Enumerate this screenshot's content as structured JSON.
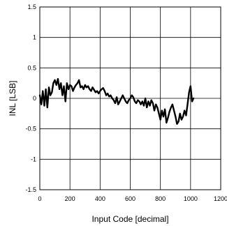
{
  "chart_data": {
    "type": "line",
    "title": "",
    "xlabel": "Input Code [decimal]",
    "ylabel": "INL [LSB]",
    "xlim": [
      0,
      1200
    ],
    "ylim": [
      -1.5,
      1.5
    ],
    "xticks": [
      "0",
      "200",
      "400",
      "600",
      "800",
      "1000",
      "1200"
    ],
    "yticks": [
      "1.5",
      "1",
      "0.5",
      "0",
      "-0.5",
      "-1",
      "-1.5"
    ],
    "grid": true,
    "series": [
      {
        "x": [
          0,
          10,
          20,
          30,
          40,
          50,
          60,
          70,
          80,
          90,
          100,
          110,
          120,
          130,
          140,
          150,
          160,
          170,
          180,
          190,
          200,
          210,
          220,
          230,
          240,
          250,
          260,
          270,
          280,
          290,
          300,
          310,
          320,
          330,
          340,
          350,
          360,
          370,
          380,
          390,
          400,
          410,
          420,
          430,
          440,
          450,
          460,
          470,
          480,
          490,
          500,
          510,
          520,
          530,
          540,
          550,
          560,
          570,
          580,
          590,
          600,
          610,
          620,
          630,
          640,
          650,
          660,
          670,
          680,
          690,
          700,
          710,
          720,
          730,
          740,
          750,
          760,
          770,
          780,
          790,
          800,
          810,
          820,
          830,
          840,
          850,
          860,
          870,
          880,
          890,
          900,
          910,
          920,
          930,
          940,
          950,
          960,
          970,
          980,
          990,
          1000,
          1010,
          1020
        ],
        "y": [
          0.05,
          -0.1,
          0.12,
          -0.12,
          0.15,
          -0.15,
          0.18,
          0.05,
          0.1,
          0.25,
          0.3,
          0.22,
          0.32,
          0.15,
          0.25,
          0.05,
          0.2,
          -0.05,
          0.25,
          0.15,
          0.22,
          0.2,
          0.12,
          0.18,
          0.22,
          0.25,
          0.3,
          0.18,
          0.2,
          0.15,
          0.22,
          0.18,
          0.2,
          0.15,
          0.12,
          0.18,
          0.14,
          0.1,
          0.12,
          0.08,
          0.12,
          0.15,
          0.17,
          0.12,
          0.05,
          0.08,
          0.03,
          0.05,
          0.0,
          -0.03,
          -0.08,
          0.02,
          -0.1,
          -0.05,
          0.0,
          0.05,
          0.0,
          -0.05,
          -0.08,
          -0.03,
          0.0,
          0.05,
          0.02,
          -0.05,
          -0.08,
          -0.03,
          -0.05,
          -0.1,
          -0.05,
          -0.12,
          0.0,
          -0.15,
          -0.05,
          -0.12,
          -0.03,
          -0.08,
          -0.2,
          -0.1,
          -0.15,
          -0.25,
          -0.35,
          -0.2,
          -0.3,
          -0.18,
          -0.4,
          -0.32,
          -0.22,
          -0.15,
          -0.1,
          -0.2,
          -0.3,
          -0.42,
          -0.38,
          -0.25,
          -0.35,
          -0.3,
          -0.2,
          -0.28,
          -0.1,
          0.1,
          0.2,
          -0.05,
          0.0
        ]
      }
    ]
  }
}
